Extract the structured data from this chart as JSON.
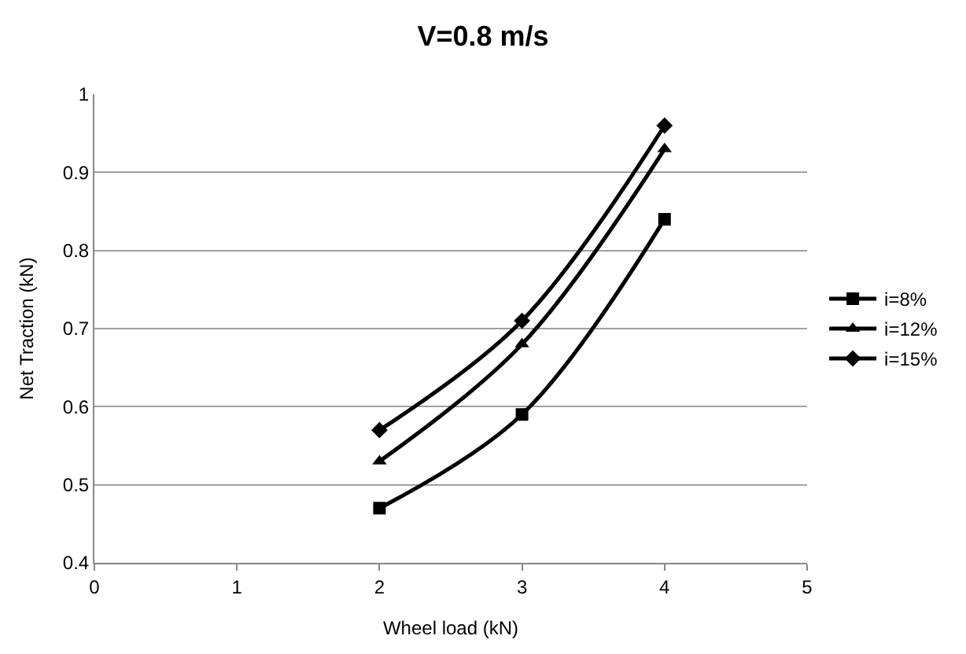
{
  "chart_data": {
    "type": "line",
    "title": "V=0.8 m/s",
    "xlabel": "Wheel load (kN)",
    "ylabel": "Net Traction (kN)",
    "x": [
      2,
      3,
      4
    ],
    "series": [
      {
        "name": "i=8%",
        "color": "#000000",
        "marker": "square",
        "values": [
          0.47,
          0.59,
          0.84
        ]
      },
      {
        "name": "i=12%",
        "color": "#000000",
        "marker": "triangle",
        "values": [
          0.53,
          0.68,
          0.93
        ]
      },
      {
        "name": "i=15%",
        "color": "#000000",
        "marker": "diamond",
        "values": [
          0.57,
          0.71,
          0.96
        ]
      }
    ],
    "xlim": [
      0,
      5
    ],
    "xticks": [
      0,
      1,
      2,
      3,
      4,
      5
    ],
    "ylim": [
      0.4,
      1
    ],
    "yticks": [
      0.4,
      0.5,
      0.6,
      0.7,
      0.8,
      0.9,
      1
    ],
    "grid": "y",
    "legend": "right",
    "line_style": "solid"
  }
}
